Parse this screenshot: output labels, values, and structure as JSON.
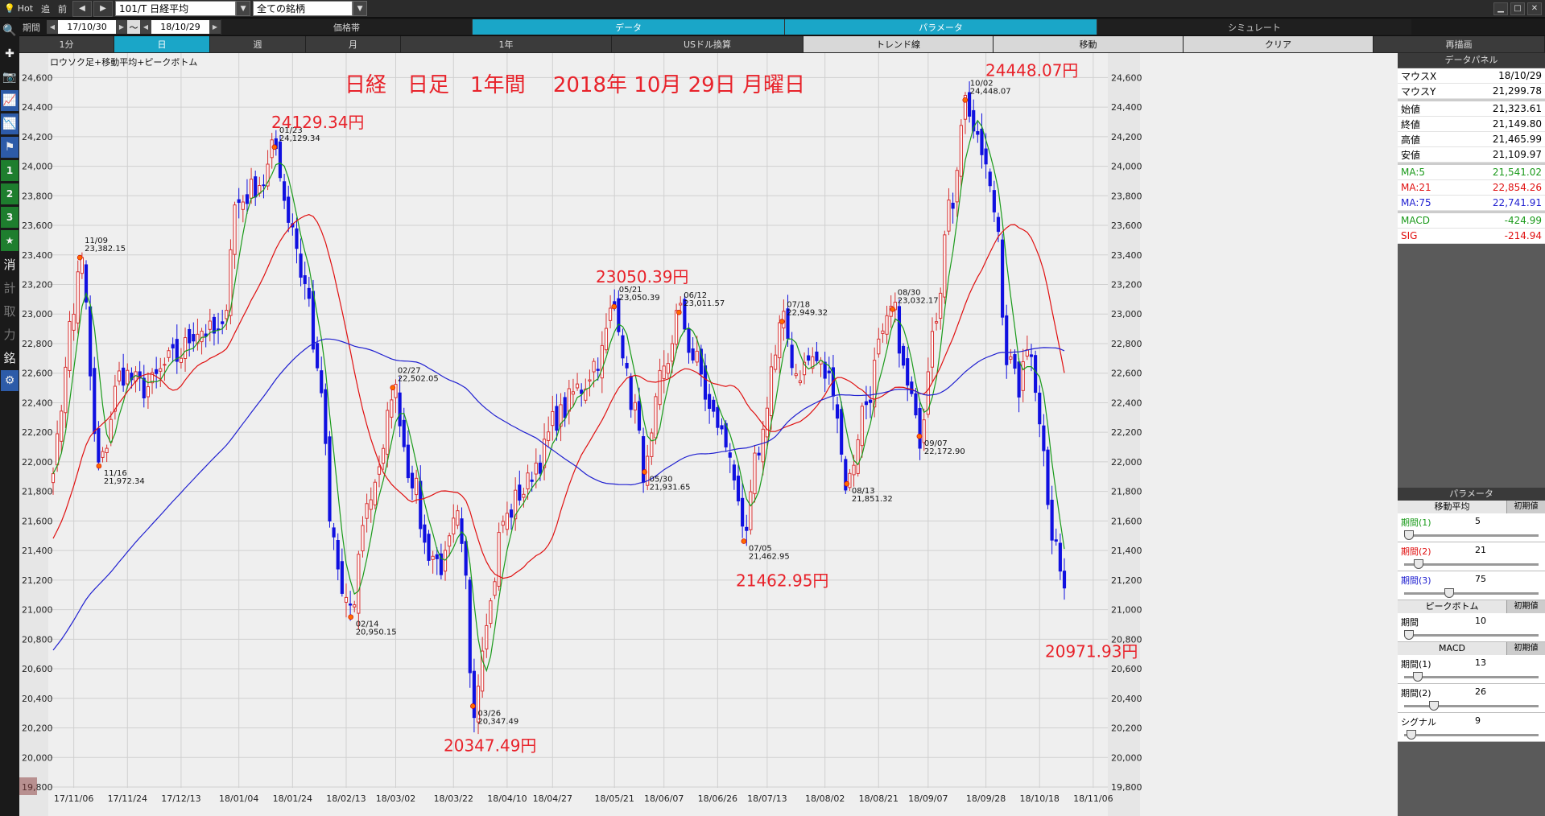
{
  "topbar": {
    "hot": "Hot",
    "btn_add": "追",
    "btn_prev": "前",
    "symbol": "101/T 日経平均",
    "universe": "全ての銘柄"
  },
  "row2": {
    "period_label": "期間",
    "date_from": "17/10/30",
    "tilde": "～",
    "date_to": "18/10/29",
    "tabs": [
      {
        "label": "価格帯"
      },
      {
        "label": "データ"
      },
      {
        "label": "パラメータ"
      },
      {
        "label": "シミュレート"
      }
    ]
  },
  "row3": {
    "tabs": [
      {
        "label": "1分"
      },
      {
        "label": "日"
      },
      {
        "label": "週"
      },
      {
        "label": "月"
      },
      {
        "label": "1年"
      },
      {
        "label": "USドル換算"
      },
      {
        "label": "トレンド線"
      },
      {
        "label": "移動"
      },
      {
        "label": "クリア"
      },
      {
        "label": "再描画"
      }
    ]
  },
  "lefttool": {
    "n1": "1",
    "n2": "2",
    "n3": "3",
    "k_erase": "消",
    "k_calc": "計",
    "k_take": "取",
    "k_force": "力",
    "k_brand": "銘"
  },
  "chart_data": {
    "type": "candlestick",
    "legend": "ロウソク足+移動平均+ピークボトム",
    "title": "日経　日足　1年間　 2018年 10月 29日 月曜日",
    "ylim": [
      19800,
      24700
    ],
    "yticks": [
      19800,
      20000,
      20200,
      20400,
      20600,
      20800,
      21000,
      21200,
      21400,
      21600,
      21800,
      22000,
      22200,
      22400,
      22600,
      22800,
      23000,
      23200,
      23400,
      23600,
      23800,
      24000,
      24200,
      24400,
      24600
    ],
    "ytick_labels": [
      "19,800",
      "20,000",
      "20,200",
      "20,400",
      "20,600",
      "20,800",
      "21,000",
      "21,200",
      "21,400",
      "21,600",
      "21,800",
      "22,000",
      "22,200",
      "22,400",
      "22,600",
      "22,800",
      "23,000",
      "23,200",
      "23,400",
      "23,600",
      "23,800",
      "24,000",
      "24,200",
      "24,400",
      "24,600"
    ],
    "xticks": [
      "17/11/06",
      "17/11/24",
      "17/12/13",
      "18/01/04",
      "18/01/24",
      "18/02/13",
      "18/03/02",
      "18/03/22",
      "18/04/10",
      "18/04/27",
      "18/05/21",
      "18/06/07",
      "18/06/26",
      "18/07/13",
      "18/08/02",
      "18/08/21",
      "18/09/07",
      "18/09/28",
      "18/10/18",
      "18/11/06"
    ],
    "grid": true,
    "ma_series": [
      {
        "name": "MA:5",
        "color": "#1a9a1a"
      },
      {
        "name": "MA:21",
        "color": "#e01010"
      },
      {
        "name": "MA:75",
        "color": "#2020d0"
      }
    ],
    "keypoints": [
      {
        "date": "11/09",
        "value": 23382.15,
        "label": "23,382.15",
        "kind": "peak"
      },
      {
        "date": "11/16",
        "value": 21972.34,
        "label": "21,972.34",
        "kind": "bottom"
      },
      {
        "date": "01/23",
        "value": 24129.34,
        "label": "24,129.34",
        "kind": "peak"
      },
      {
        "date": "02/14",
        "value": 20950.15,
        "label": "20,950.15",
        "kind": "bottom"
      },
      {
        "date": "02/27",
        "value": 22502.05,
        "label": "22,502.05",
        "kind": "peak"
      },
      {
        "date": "03/26",
        "value": 20347.49,
        "label": "20,347.49",
        "kind": "bottom"
      },
      {
        "date": "05/21",
        "value": 23050.39,
        "label": "23,050.39",
        "kind": "peak"
      },
      {
        "date": "05/30",
        "value": 21931.65,
        "label": "21,931.65",
        "kind": "bottom"
      },
      {
        "date": "06/12",
        "value": 23011.57,
        "label": "23,011.57",
        "kind": "peak"
      },
      {
        "date": "07/05",
        "value": 21462.95,
        "label": "21,462.95",
        "kind": "bottom"
      },
      {
        "date": "07/18",
        "value": 22949.32,
        "label": "22,949.32",
        "kind": "peak"
      },
      {
        "date": "08/13",
        "value": 21851.32,
        "label": "21,851.32",
        "kind": "bottom"
      },
      {
        "date": "08/30",
        "value": 23032.17,
        "label": "23,032.17",
        "kind": "peak"
      },
      {
        "date": "09/07",
        "value": 22172.9,
        "label": "22,172.90",
        "kind": "bottom"
      },
      {
        "date": "10/02",
        "value": 24448.07,
        "label": "24,448.07",
        "kind": "peak"
      }
    ],
    "big_labels": [
      {
        "text": "24129.34円",
        "value": 24129.34
      },
      {
        "text": "23050.39円",
        "value": 23050.39
      },
      {
        "text": "24448.07円",
        "value": 24448.07
      },
      {
        "text": "20347.49円",
        "value": 20347.49
      },
      {
        "text": "21462.95円",
        "value": 21462.95
      },
      {
        "text": "20971.93円",
        "value": 20971.93
      }
    ]
  },
  "data_panel": {
    "title": "データパネル",
    "rows": [
      {
        "k": "マウスX",
        "v": "18/10/29",
        "color": "#000000"
      },
      {
        "k": "マウスY",
        "v": "21,299.78",
        "color": "#000000"
      },
      {
        "sep": true
      },
      {
        "k": "始値",
        "v": "21,323.61",
        "color": "#000000"
      },
      {
        "k": "終値",
        "v": "21,149.80",
        "color": "#000000"
      },
      {
        "k": "高値",
        "v": "21,465.99",
        "color": "#000000"
      },
      {
        "k": "安値",
        "v": "21,109.97",
        "color": "#000000"
      },
      {
        "sep": true
      },
      {
        "k": "MA:5",
        "v": "21,541.02",
        "color": "#1a9a1a"
      },
      {
        "k": "MA:21",
        "v": "22,854.26",
        "color": "#e01010"
      },
      {
        "k": "MA:75",
        "v": "22,741.91",
        "color": "#2020d0"
      },
      {
        "sep": true
      },
      {
        "k": "MACD",
        "v": "-424.99",
        "color": "#1a9a1a"
      },
      {
        "k": "SIG",
        "v": "-214.94",
        "color": "#e01010"
      }
    ]
  },
  "params": {
    "title": "パラメータ",
    "ma_title": "移動平均",
    "reset": "初期値",
    "ma": [
      {
        "label": "期間(1)",
        "value": "5",
        "color": "#1a9a1a",
        "pos": 0.0
      },
      {
        "label": "期間(2)",
        "value": "21",
        "color": "#e01010",
        "pos": 0.08
      },
      {
        "label": "期間(3)",
        "value": "75",
        "color": "#2020d0",
        "pos": 0.32
      }
    ],
    "pb_title": "ピークボトム",
    "pb": [
      {
        "label": "期間",
        "value": "10",
        "color": "#000000",
        "pos": 0.0
      }
    ],
    "macd_title": "MACD",
    "macd": [
      {
        "label": "期間(1)",
        "value": "13",
        "color": "#000000",
        "pos": 0.07
      },
      {
        "label": "期間(2)",
        "value": "26",
        "color": "#000000",
        "pos": 0.2
      },
      {
        "label": "シグナル",
        "value": "9",
        "color": "#000000",
        "pos": 0.02
      }
    ]
  }
}
